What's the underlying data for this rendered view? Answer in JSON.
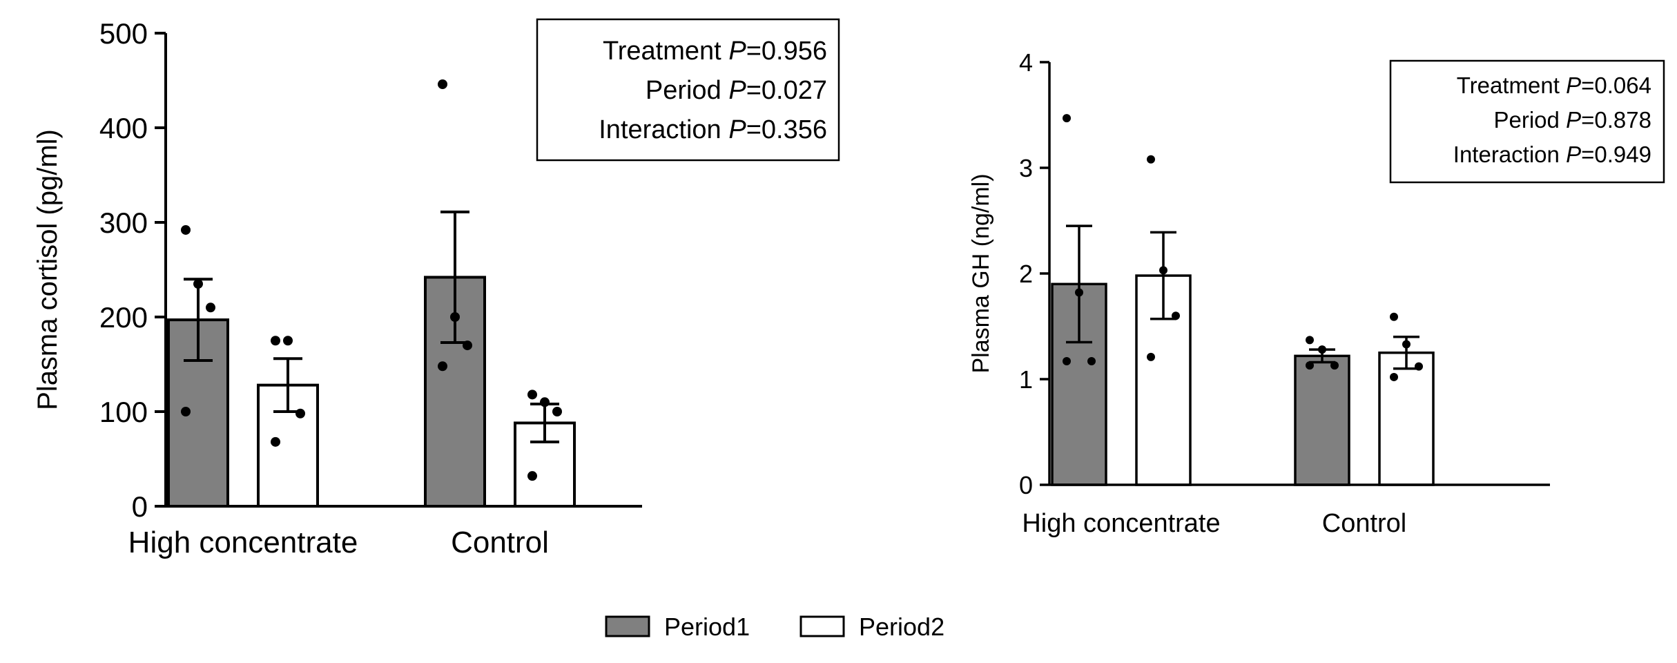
{
  "chart_data": [
    {
      "type": "bar",
      "title": "",
      "xlabel": "",
      "ylabel": "Plasma cortisol (pg/ml)",
      "ylim": [
        0,
        500
      ],
      "yticks": [
        0,
        100,
        200,
        300,
        400,
        500
      ],
      "categories": [
        "High concentrate",
        "Control"
      ],
      "series": [
        {
          "name": "Period1",
          "values": [
            197,
            242
          ],
          "sem": [
            43,
            69
          ],
          "fill": "#808080",
          "points": [
            [
              292,
              235,
              210,
              100
            ],
            [
              446,
              200,
              170,
              148
            ]
          ]
        },
        {
          "name": "Period2",
          "values": [
            128,
            88
          ],
          "sem": [
            28,
            20
          ],
          "fill": "#ffffff",
          "points": [
            [
              175,
              175,
              98,
              68
            ],
            [
              118,
              110,
              100,
              32
            ]
          ]
        }
      ],
      "stats": [
        {
          "label": "Treatment",
          "p": "P",
          "value": "=0.956"
        },
        {
          "label": "Period",
          "p": "P",
          "value": "=0.027"
        },
        {
          "label": "Interaction",
          "p": "P",
          "value": "=0.356"
        }
      ]
    },
    {
      "type": "bar",
      "title": "",
      "xlabel": "",
      "ylabel": "Plasma GH (ng/ml)",
      "ylim": [
        0,
        4
      ],
      "yticks": [
        0,
        1,
        2,
        3,
        4
      ],
      "categories": [
        "High concentrate",
        "Control"
      ],
      "series": [
        {
          "name": "Period1",
          "values": [
            1.9,
            1.22
          ],
          "sem": [
            0.55,
            0.06
          ],
          "fill": "#808080",
          "points": [
            [
              3.47,
              1.82,
              1.17,
              1.17
            ],
            [
              1.37,
              1.28,
              1.13,
              1.13
            ]
          ]
        },
        {
          "name": "Period2",
          "values": [
            1.98,
            1.25
          ],
          "sem": [
            0.41,
            0.15
          ],
          "fill": "#ffffff",
          "points": [
            [
              3.08,
              2.03,
              1.6,
              1.21
            ],
            [
              1.59,
              1.33,
              1.12,
              1.02
            ]
          ]
        }
      ],
      "stats": [
        {
          "label": "Treatment",
          "p": "P",
          "value": "=0.064"
        },
        {
          "label": "Period",
          "p": "P",
          "value": "=0.878"
        },
        {
          "label": "Interaction",
          "p": "P",
          "value": "=0.949"
        }
      ]
    }
  ],
  "legend": [
    {
      "label": "Period1",
      "fill": "#808080"
    },
    {
      "label": "Period2",
      "fill": "#ffffff"
    }
  ]
}
